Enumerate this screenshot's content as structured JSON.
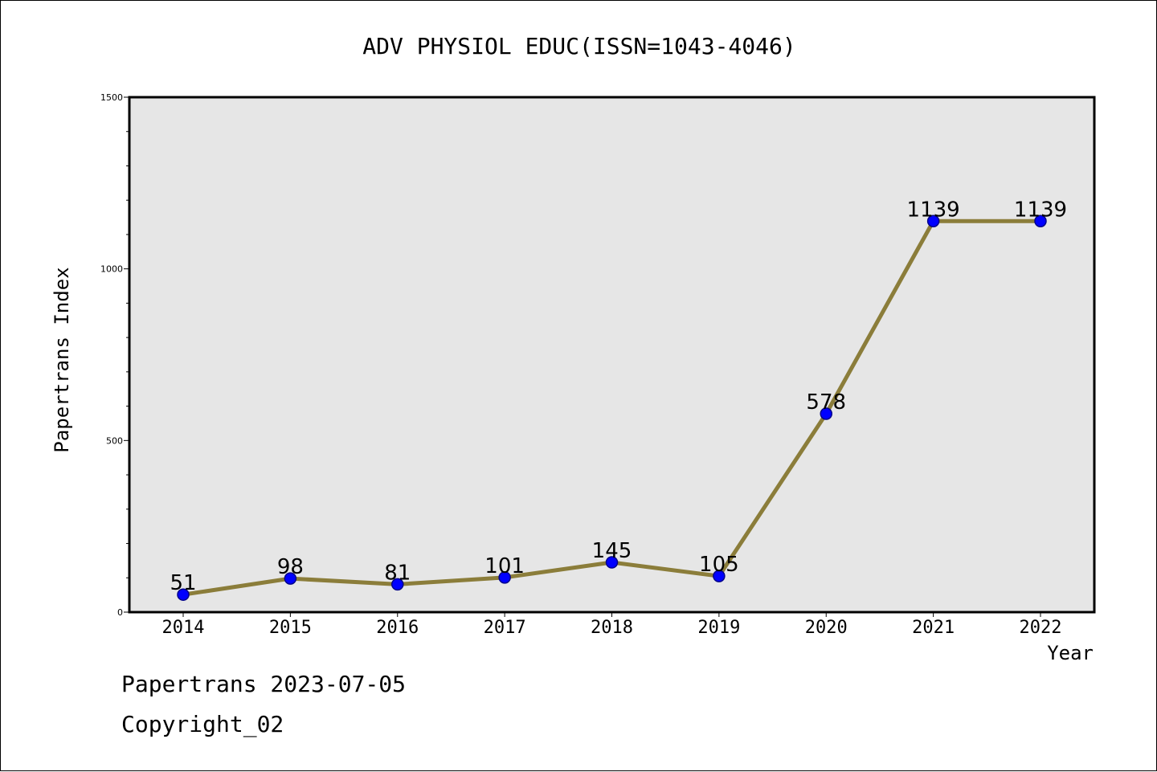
{
  "colors": {
    "plot_bg": "#e6e6e6",
    "line": "#8b7d3a",
    "marker": "#0000ff",
    "marker_edge": "#00008b"
  },
  "footer": {
    "line1": "Papertrans 2023-07-05",
    "line2": "Copyright_02"
  },
  "chart_data": {
    "type": "line",
    "title": "ADV PHYSIOL EDUC(ISSN=1043-4046)",
    "xlabel": "Year",
    "ylabel": "Papertrans Index",
    "categories": [
      "2014",
      "2015",
      "2016",
      "2017",
      "2018",
      "2019",
      "2020",
      "2021",
      "2022"
    ],
    "series": [
      {
        "values": [
          51,
          98,
          81,
          101,
          145,
          105,
          578,
          1139,
          1139
        ]
      }
    ],
    "data_labels": [
      "51",
      "98",
      "81",
      "101",
      "145",
      "105",
      "578",
      "1139",
      "1139"
    ],
    "ylim": [
      0,
      1500
    ],
    "yticks": [
      0,
      500,
      1000,
      1500
    ],
    "grid": false,
    "legend": "none"
  }
}
